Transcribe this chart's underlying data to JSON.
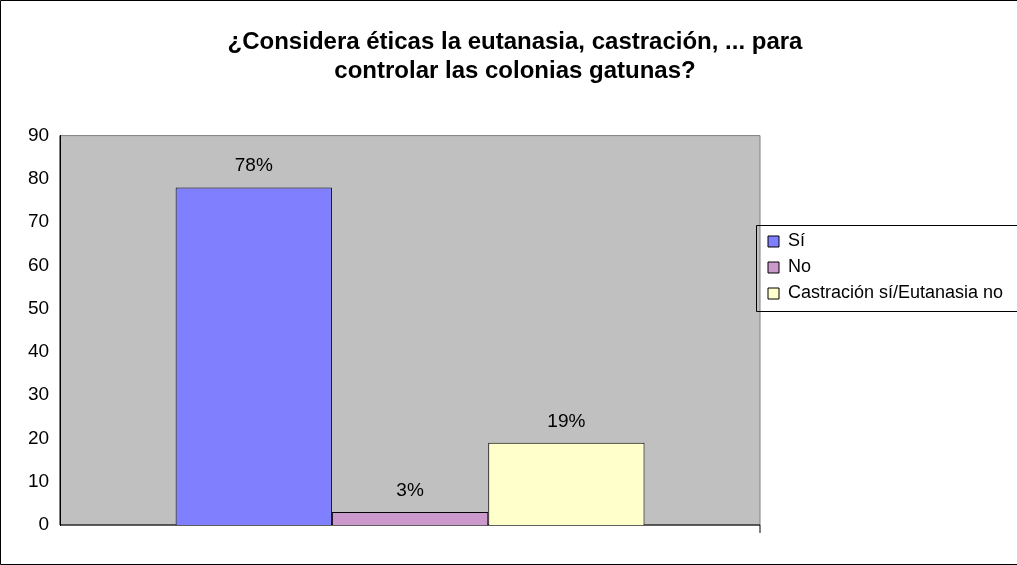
{
  "chart_data": {
    "type": "bar",
    "title": "¿Considera éticas la eutanasia, castración, ... para controlar las colonias gatunas?",
    "categories": [
      null
    ],
    "series": [
      {
        "name": "Sí",
        "color": "#8080ff",
        "values": [
          78
        ],
        "value_labels": [
          "78%"
        ]
      },
      {
        "name": "No",
        "color": "#cc99cc",
        "values": [
          3
        ],
        "value_labels": [
          "3%"
        ]
      },
      {
        "name": "Castración sí/Eutanasia no",
        "color": "#ffffcc",
        "values": [
          19
        ],
        "value_labels": [
          "19%"
        ]
      }
    ],
    "ylim": [
      0,
      90
    ],
    "yticks": [
      0,
      10,
      20,
      30,
      40,
      50,
      60,
      70,
      80,
      90
    ],
    "grid": false,
    "legend": "right"
  }
}
